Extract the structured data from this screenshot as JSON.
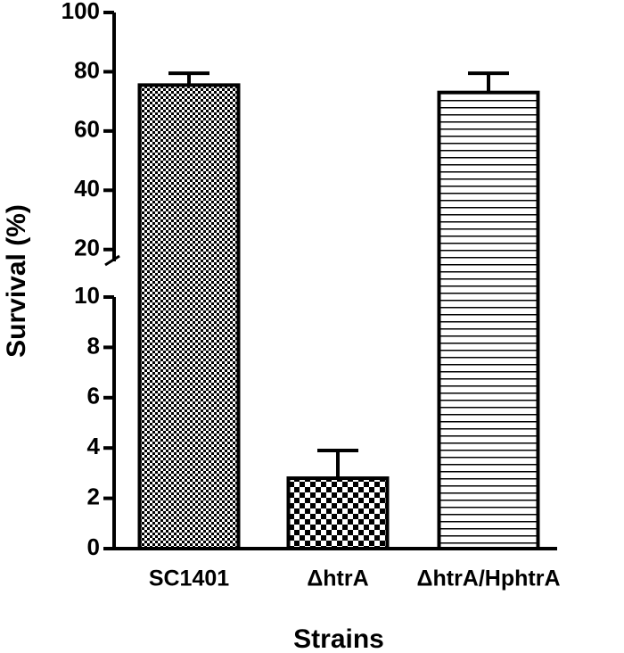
{
  "chart_data": {
    "type": "bar",
    "categories": [
      "SC1401",
      "ΔhtrA",
      "ΔhtrA/HphtrA"
    ],
    "values": [
      75.5,
      2.8,
      73
    ],
    "errors": [
      4,
      1.1,
      6.5
    ],
    "patterns": [
      "fine-checker",
      "coarse-checker",
      "horizontal-lines"
    ],
    "color": "#000000",
    "x_label": "Strains",
    "y_label": "Survival (%)",
    "ylim": [
      0,
      100
    ],
    "y_break": [
      10,
      16
    ],
    "yticks": [
      0,
      2,
      4,
      6,
      8,
      10,
      20,
      40,
      60,
      80,
      100
    ]
  }
}
